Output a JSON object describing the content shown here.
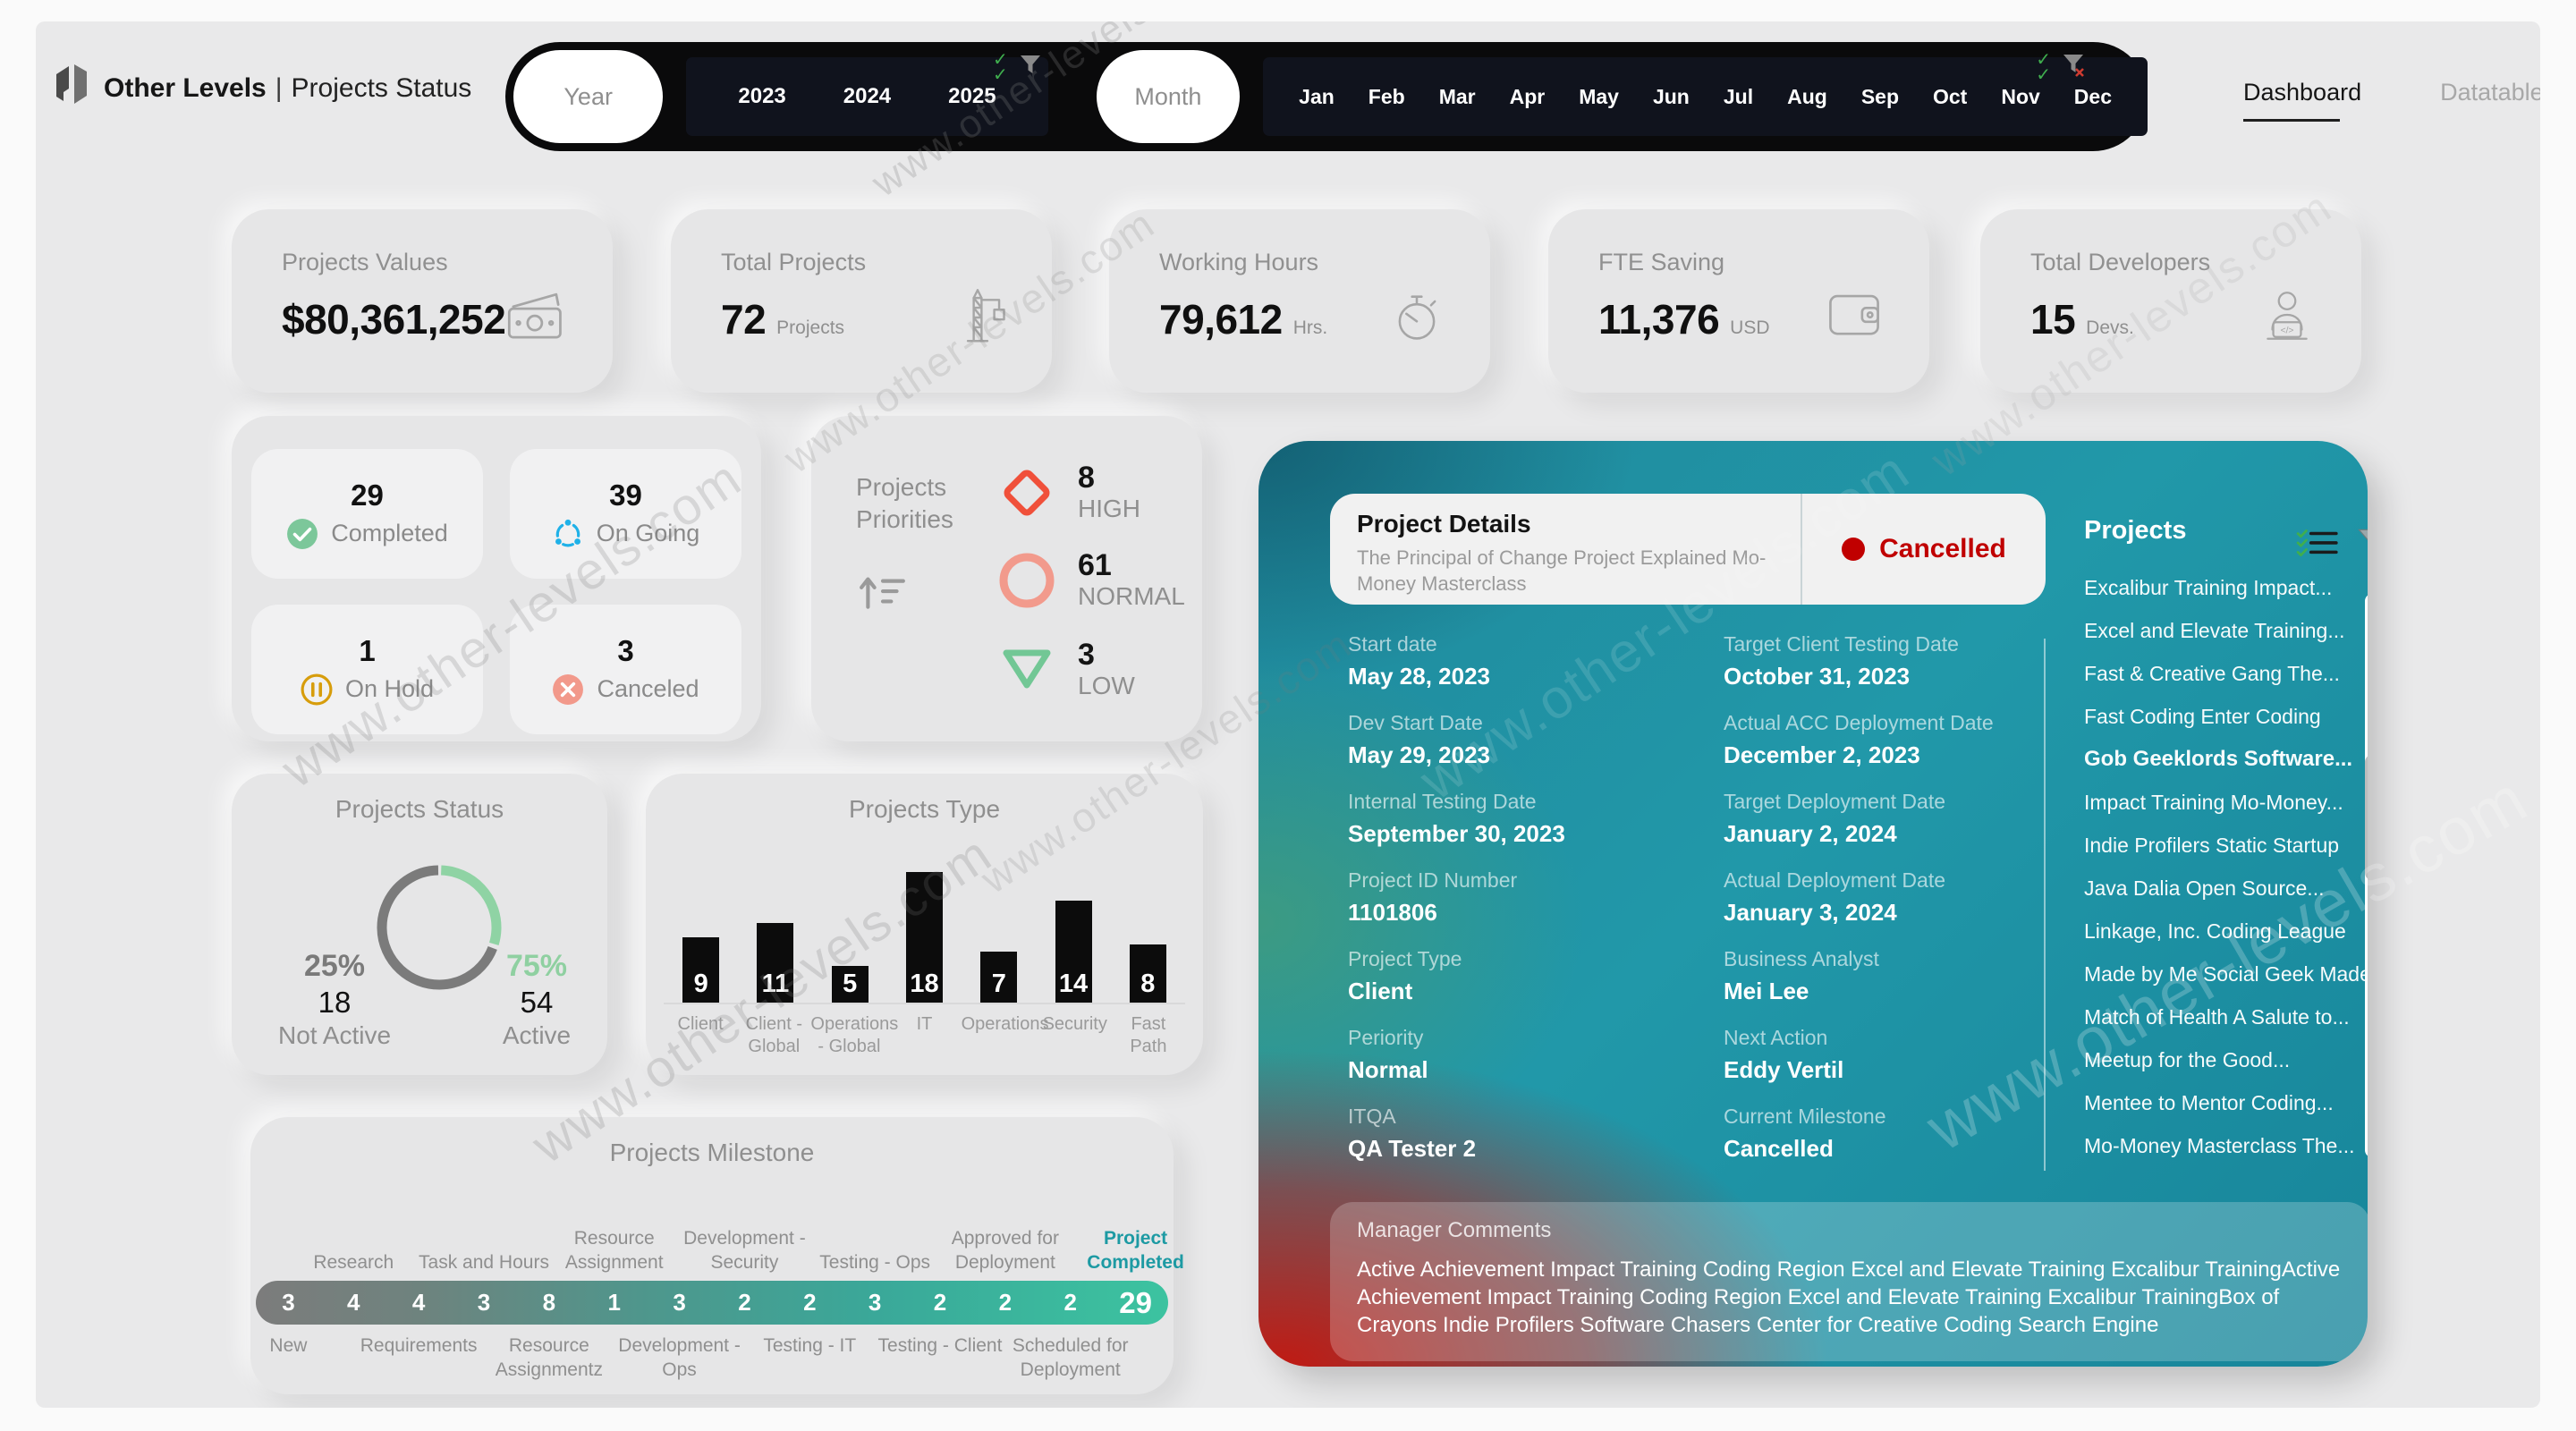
{
  "brand": {
    "name": "Other Levels",
    "divider": "|",
    "page_title": "Projects Status"
  },
  "slicers": {
    "year": {
      "label": "Year",
      "options": [
        "2023",
        "2024",
        "2025"
      ]
    },
    "month": {
      "label": "Month",
      "options": [
        "Jan",
        "Feb",
        "Mar",
        "Apr",
        "May",
        "Jun",
        "Jul",
        "Aug",
        "Sep",
        "Oct",
        "Nov",
        "Dec"
      ]
    }
  },
  "tabs": [
    {
      "label": "Dashboard",
      "active": true
    },
    {
      "label": "Datatable",
      "active": false
    }
  ],
  "kpis": [
    {
      "label": "Projects Values",
      "value": "$80,361,252",
      "unit": "",
      "icon": "banknotes-icon"
    },
    {
      "label": "Total Projects",
      "value": "72",
      "unit": "Projects",
      "icon": "crane-icon"
    },
    {
      "label": "Working Hours",
      "value": "79,612",
      "unit": "Hrs.",
      "icon": "stopwatch-icon"
    },
    {
      "label": "FTE Saving",
      "value": "11,376",
      "unit": "USD",
      "icon": "wallet-icon"
    },
    {
      "label": "Total Developers",
      "value": "15",
      "unit": "Devs.",
      "icon": "developer-icon"
    }
  ],
  "status_tiles": [
    {
      "value": "29",
      "label": "Completed",
      "icon": "check-circle-icon",
      "color": "#7cc79a"
    },
    {
      "value": "39",
      "label": "On Going",
      "icon": "sync-icon",
      "color": "#1fb1e8"
    },
    {
      "value": "1",
      "label": "On Hold",
      "icon": "pause-circle-icon",
      "color": "#d79d0c"
    },
    {
      "value": "3",
      "label": "Canceled",
      "icon": "x-circle-icon",
      "color": "#f2998b"
    }
  ],
  "priorities": {
    "title": "Projects Priorities",
    "items": [
      {
        "value": "8",
        "label": "HIGH",
        "icon": "diamond-icon",
        "color": "#f0503a"
      },
      {
        "value": "61",
        "label": "NORMAL",
        "icon": "circle-icon",
        "color": "#f29a8c"
      },
      {
        "value": "3",
        "label": "LOW",
        "icon": "triangle-down-icon",
        "color": "#72c795"
      }
    ]
  },
  "chart_data": [
    {
      "type": "pie",
      "title": "Projects Status",
      "legend_position": "none",
      "slices": [
        {
          "label": "Not Active",
          "count": "18",
          "pct": "25%",
          "color": "#7a7a7a"
        },
        {
          "label": "Active",
          "count": "54",
          "pct": "75%",
          "color": "#8fd3a4"
        }
      ]
    },
    {
      "type": "bar",
      "title": "Projects Type",
      "ylim": [
        0,
        18
      ],
      "grid": false,
      "categories": [
        "Client",
        "Client - Global",
        "Operations - Global",
        "IT",
        "Operations",
        "Security",
        "Fast Path"
      ],
      "values": [
        9,
        11,
        5,
        18,
        7,
        14,
        8
      ],
      "columns": [
        {
          "label": "Client",
          "value": 9
        },
        {
          "label": "Client - Global",
          "value": 11
        },
        {
          "label": "Operations - Global",
          "value": 5
        },
        {
          "label": "IT",
          "value": 18
        },
        {
          "label": "Operations",
          "value": 7
        },
        {
          "label": "Security",
          "value": 14
        },
        {
          "label": "Fast Path",
          "value": 8
        }
      ]
    },
    {
      "type": "bar",
      "subtype": "milestone-strip",
      "title": "Projects Milestone",
      "stages": [
        {
          "label": "New",
          "value": 3,
          "pos": "bottom"
        },
        {
          "label": "Research",
          "value": 4,
          "pos": "top"
        },
        {
          "label": "Requirements",
          "value": 4,
          "pos": "bottom"
        },
        {
          "label": "Task and Hours",
          "value": 3,
          "pos": "top"
        },
        {
          "label": "Resource Assignmentz",
          "value": 8,
          "pos": "bottom"
        },
        {
          "label": "Resource Assignment",
          "value": 1,
          "pos": "top"
        },
        {
          "label": "Development - Ops",
          "value": 3,
          "pos": "bottom"
        },
        {
          "label": "Development - Security",
          "value": 2,
          "pos": "top"
        },
        {
          "label": "Testing - IT",
          "value": 2,
          "pos": "bottom"
        },
        {
          "label": "Testing - Ops",
          "value": 3,
          "pos": "top"
        },
        {
          "label": "Testing - Client",
          "value": 2,
          "pos": "bottom"
        },
        {
          "label": "Approved for Deployment",
          "value": 2,
          "pos": "top"
        },
        {
          "label": "Scheduled for Deployment",
          "value": 2,
          "pos": "bottom"
        },
        {
          "label": "Project Completed",
          "value": 29,
          "pos": "top",
          "highlight": true
        }
      ]
    }
  ],
  "project_details": {
    "title": "Project Details",
    "subtitle": "The Principal of Change  Project Explained Mo-Money Masterclass",
    "status": "Cancelled",
    "status_color": "#c00000",
    "fields_left": [
      {
        "label": "Start date",
        "value": "May 28, 2023"
      },
      {
        "label": "Dev Start Date",
        "value": "May 29, 2023"
      },
      {
        "label": "Internal Testing Date",
        "value": "September 30, 2023"
      },
      {
        "label": "Project ID Number",
        "value": "1101806"
      },
      {
        "label": "Project Type",
        "value": "Client"
      },
      {
        "label": "Periority",
        "value": "Normal"
      },
      {
        "label": "ITQA",
        "value": "QA Tester 2"
      }
    ],
    "fields_right": [
      {
        "label": "Target Client Testing Date",
        "value": "October 31, 2023"
      },
      {
        "label": "Actual ACC Deployment Date",
        "value": "December 2, 2023"
      },
      {
        "label": "Target Deployment Date",
        "value": "January 2, 2024"
      },
      {
        "label": "Actual Deployment Date",
        "value": "January 3, 2024"
      },
      {
        "label": "Business Analyst",
        "value": "Mei Lee"
      },
      {
        "label": "Next Action",
        "value": "Eddy Vertil"
      },
      {
        "label": "Current Milestone",
        "value": "Cancelled"
      }
    ]
  },
  "projects_panel": {
    "title": "Projects",
    "items": [
      {
        "name": "Excalibur Training Impact...",
        "selected": false
      },
      {
        "name": "Excel and Elevate Training...",
        "selected": false
      },
      {
        "name": "Fast & Creative Gang The...",
        "selected": false
      },
      {
        "name": "Fast Coding Enter Coding",
        "selected": false
      },
      {
        "name": "Gob Geeklords Software...",
        "selected": true
      },
      {
        "name": "Impact Training Mo-Money...",
        "selected": false
      },
      {
        "name": "Indie Profilers Static Startup",
        "selected": false
      },
      {
        "name": "Java Dalia Open Source...",
        "selected": false
      },
      {
        "name": "Linkage, Inc. Coding League",
        "selected": false
      },
      {
        "name": "Made by Me Social Geek Made",
        "selected": false
      },
      {
        "name": "Match of Health A Salute to...",
        "selected": false
      },
      {
        "name": "Meetup for the Good...",
        "selected": false
      },
      {
        "name": "Mentee to Mentor Coding...",
        "selected": false
      },
      {
        "name": "Mo-Money Masterclass The...",
        "selected": false
      }
    ]
  },
  "manager_comments": {
    "title": "Manager Comments",
    "body": "Active Achievement Impact Training Coding Region Excel and Elevate Training Excalibur TrainingActive Achievement Impact Training Coding Region Excel and Elevate Training Excalibur TrainingBox of Crayons Indie Profilers Software Chasers Center for Creative Coding Search Engine"
  },
  "watermark": {
    "text": "www.other-levels.com"
  }
}
